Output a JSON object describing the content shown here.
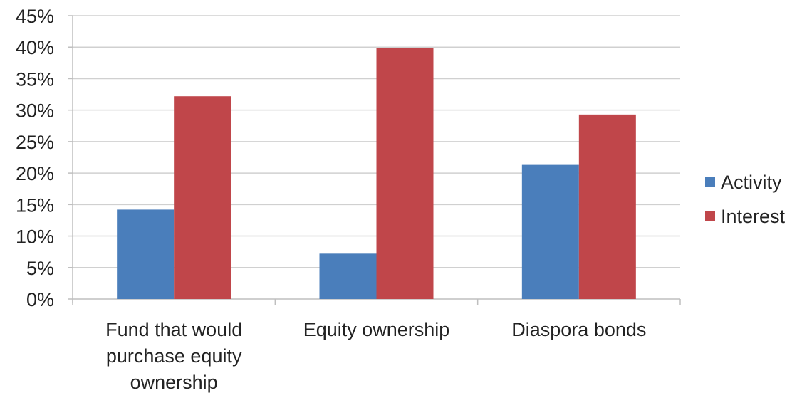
{
  "chart_data": {
    "type": "bar",
    "categories": [
      [
        "Fund that would",
        "purchase equity",
        "ownership"
      ],
      [
        "Equity ownership"
      ],
      [
        "Diaspora bonds"
      ]
    ],
    "series": [
      {
        "name": "Activity",
        "color": "#4a7ebb",
        "values": [
          14.2,
          7.2,
          21.3
        ]
      },
      {
        "name": "Interest",
        "color": "#c0464a",
        "values": [
          32.2,
          39.9,
          29.3
        ]
      }
    ],
    "yticks": [
      "0%",
      "5%",
      "10%",
      "15%",
      "20%",
      "25%",
      "30%",
      "35%",
      "40%",
      "45%"
    ],
    "ylim": [
      0,
      45
    ],
    "ystep": 5,
    "grid": true,
    "legend_position": "right",
    "title": "",
    "xlabel": "",
    "ylabel": ""
  }
}
